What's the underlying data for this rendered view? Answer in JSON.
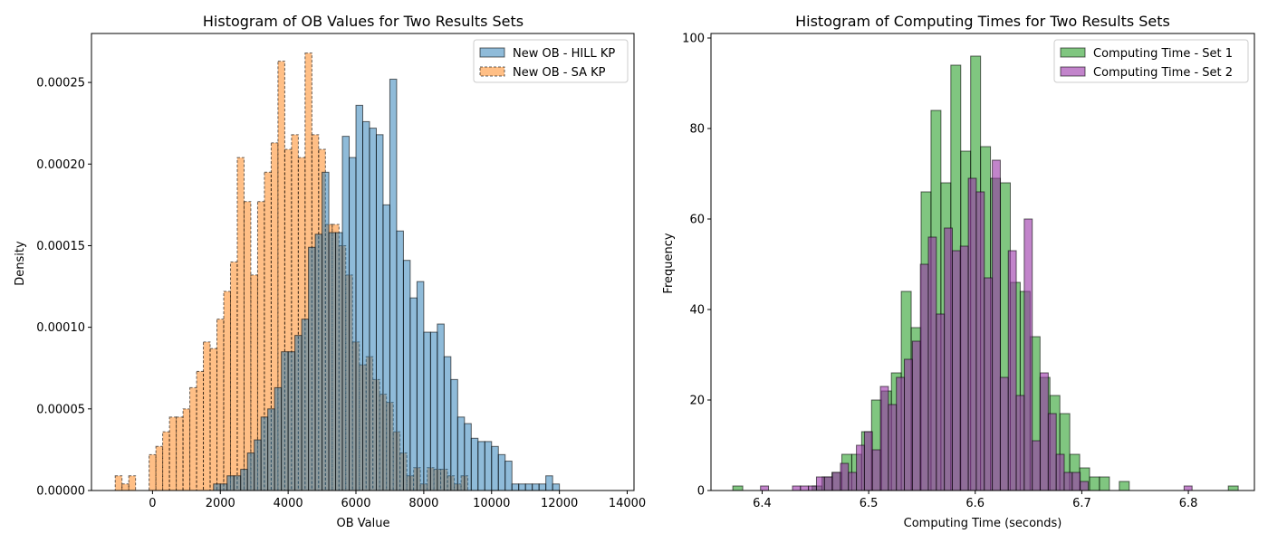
{
  "chart_data": [
    {
      "type": "bar",
      "title": "Histogram of OB Values for Two Results Sets",
      "xlabel": "OB Value",
      "ylabel": "Density",
      "xlim": [
        -1800,
        14200
      ],
      "ylim": [
        0,
        0.00028
      ],
      "xticks": [
        0,
        2000,
        4000,
        6000,
        8000,
        10000,
        12000,
        14000
      ],
      "xtick_labels": [
        "0",
        "2000",
        "4000",
        "6000",
        "8000",
        "10000",
        "12000",
        "14000"
      ],
      "yticks": [
        0,
        5e-05,
        0.0001,
        0.00015,
        0.0002,
        0.00025
      ],
      "ytick_labels": [
        "0.00000",
        "0.00005",
        "0.00010",
        "0.00015",
        "0.00020",
        "0.00025"
      ],
      "grid": false,
      "legend_position": "top-right",
      "series": [
        {
          "name": "New OB - SA KP",
          "color": "#ff7f0e",
          "edge_style": "dashed",
          "bin_start": -1100,
          "bin_width": 200,
          "values": [
            9e-06,
            4e-06,
            9e-06,
            0,
            0,
            2.2e-05,
            2.7e-05,
            3.6e-05,
            4.5e-05,
            4.5e-05,
            5e-05,
            6.3e-05,
            7.3e-05,
            9.1e-05,
            8.7e-05,
            0.000105,
            0.000122,
            0.00014,
            0.000204,
            0.000177,
            0.000132,
            0.000177,
            0.000195,
            0.000213,
            0.000263,
            0.000209,
            0.000218,
            0.000204,
            0.000268,
            0.000218,
            0.000209,
            0.000163,
            0.000163,
            0.00015,
            0.000132,
            9.1e-05,
            7.7e-05,
            8.2e-05,
            6.8e-05,
            5.9e-05,
            5.4e-05,
            3.6e-05,
            2.3e-05,
            9e-06,
            1.4e-05,
            4e-06,
            1.4e-05,
            1.3e-05,
            1.3e-05,
            9e-06,
            4e-06,
            9e-06
          ]
        },
        {
          "name": "New OB - HILL KP",
          "color": "#1f77b4",
          "edge_style": "solid",
          "bin_start": 1800,
          "bin_width": 200,
          "values": [
            4e-06,
            4e-06,
            9e-06,
            9e-06,
            1.3e-05,
            2.3e-05,
            3.1e-05,
            4.5e-05,
            5e-05,
            6.3e-05,
            8.5e-05,
            8.5e-05,
            9.5e-05,
            0.000105,
            0.000149,
            0.000157,
            0.000195,
            0.000158,
            0.000158,
            0.000217,
            0.000204,
            0.000236,
            0.000226,
            0.000222,
            0.000218,
            0.000175,
            0.000252,
            0.000159,
            0.000141,
            0.000118,
            0.000128,
            9.7e-05,
            9.7e-05,
            0.000102,
            8.2e-05,
            6.8e-05,
            4.5e-05,
            4.1e-05,
            3.2e-05,
            3e-05,
            3e-05,
            2.7e-05,
            2.2e-05,
            1.8e-05,
            4e-06,
            4e-06,
            4e-06,
            4e-06,
            4e-06,
            9e-06,
            4e-06
          ]
        }
      ]
    },
    {
      "type": "bar",
      "title": "Histogram of Computing Times for Two Results Sets",
      "xlabel": "Computing Time (seconds)",
      "ylabel": "Frequency",
      "xlim": [
        6.352,
        6.862
      ],
      "ylim": [
        0,
        101
      ],
      "xticks": [
        6.4,
        6.5,
        6.6,
        6.7,
        6.8
      ],
      "xtick_labels": [
        "6.4",
        "6.5",
        "6.6",
        "6.7",
        "6.8"
      ],
      "yticks": [
        0,
        20,
        40,
        60,
        80,
        100
      ],
      "ytick_labels": [
        "0",
        "20",
        "40",
        "60",
        "80",
        "100"
      ],
      "grid": false,
      "legend_position": "top-right",
      "series": [
        {
          "name": "Computing Time - Set 1",
          "color": "#2ca02c",
          "bin_start": 6.3725,
          "bin_width": 0.0093,
          "values": [
            1,
            0,
            0,
            0,
            0,
            0,
            0,
            0,
            1,
            3,
            4,
            8,
            8,
            13,
            20,
            22,
            26,
            44,
            36,
            66,
            84,
            68,
            94,
            75,
            96,
            76,
            69,
            68,
            46,
            44,
            34,
            25,
            21,
            17,
            8,
            5,
            3,
            3,
            0,
            2,
            0,
            0,
            0,
            0,
            0,
            0,
            0,
            0,
            0,
            0,
            1
          ]
        },
        {
          "name": "Computing Time - Set 2",
          "color": "#9932a8",
          "bin_start": 6.3985,
          "bin_width": 0.0075,
          "values": [
            1,
            0,
            0,
            0,
            1,
            1,
            1,
            3,
            3,
            4,
            6,
            4,
            10,
            13,
            9,
            23,
            19,
            25,
            29,
            33,
            50,
            56,
            39,
            58,
            53,
            54,
            69,
            66,
            47,
            73,
            25,
            53,
            21,
            60,
            11,
            26,
            17,
            8,
            4,
            4,
            2,
            0,
            0,
            0,
            0,
            0,
            0,
            0,
            0,
            0,
            0,
            0,
            0,
            1
          ]
        }
      ]
    }
  ]
}
